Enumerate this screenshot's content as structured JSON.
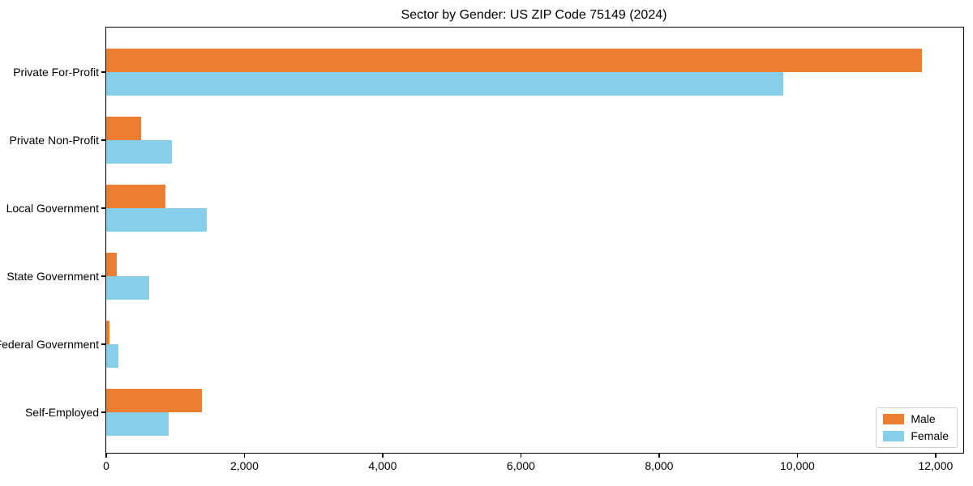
{
  "chart_data": {
    "type": "bar",
    "orientation": "horizontal",
    "title": "Sector by Gender: US ZIP Code 75149 (2024)",
    "categories": [
      "Private For-Profit",
      "Private Non-Profit",
      "Local Government",
      "State Government",
      "Federal Government",
      "Self-Employed"
    ],
    "series": [
      {
        "name": "Male",
        "color": "#ed7d31",
        "values": [
          11800,
          500,
          850,
          150,
          45,
          1380
        ]
      },
      {
        "name": "Female",
        "color": "#87ceeb",
        "values": [
          9800,
          950,
          1450,
          620,
          175,
          900
        ]
      }
    ],
    "xlabel": "",
    "ylabel": "",
    "xlim": [
      0,
      12400
    ],
    "xticks": [
      0,
      2000,
      4000,
      6000,
      8000,
      10000,
      12000
    ],
    "xtick_labels": [
      "0",
      "2,000",
      "4,000",
      "6,000",
      "8,000",
      "10,000",
      "12,000"
    ],
    "grid": false,
    "background": "#ffffff",
    "axis_color": "#000000",
    "legend": {
      "position": "lower-right",
      "entries": [
        "Male",
        "Female"
      ]
    }
  }
}
